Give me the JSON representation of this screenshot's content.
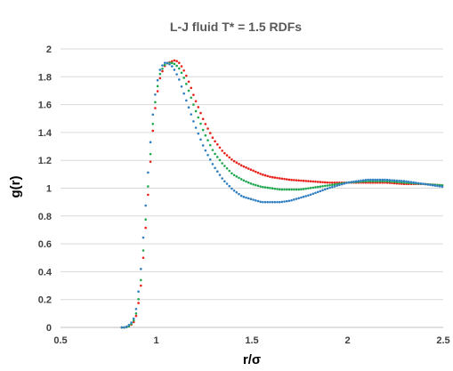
{
  "chart_data": {
    "type": "scatter",
    "title": "L-J fluid T* = 1.5 RDFs",
    "xlabel": "r/σ",
    "ylabel": "g(r)",
    "xlim": [
      0.5,
      2.5
    ],
    "ylim": [
      0,
      2
    ],
    "xticks": [
      0.5,
      1,
      1.5,
      2,
      2.5
    ],
    "yticks": [
      0,
      0.2,
      0.4,
      0.6,
      0.8,
      1,
      1.2,
      1.4,
      1.6,
      1.8,
      2
    ],
    "grid": "horizontal",
    "legend": "none",
    "series": [
      {
        "color": "#e8211b",
        "x": [
          0.82,
          0.84,
          0.86,
          0.88,
          0.9,
          0.92,
          0.94,
          0.96,
          0.98,
          1.0,
          1.02,
          1.04,
          1.06,
          1.08,
          1.1,
          1.12,
          1.14,
          1.16,
          1.18,
          1.2,
          1.25,
          1.3,
          1.35,
          1.4,
          1.45,
          1.5,
          1.55,
          1.6,
          1.7,
          1.8,
          1.9,
          2.0,
          2.1,
          2.2,
          2.3,
          2.4,
          2.5
        ],
        "y": [
          0.0,
          0.0,
          0.01,
          0.03,
          0.1,
          0.3,
          0.62,
          1.0,
          1.38,
          1.64,
          1.79,
          1.87,
          1.9,
          1.91,
          1.92,
          1.9,
          1.86,
          1.8,
          1.73,
          1.65,
          1.48,
          1.35,
          1.26,
          1.2,
          1.16,
          1.13,
          1.1,
          1.08,
          1.06,
          1.05,
          1.04,
          1.04,
          1.04,
          1.04,
          1.03,
          1.03,
          1.02
        ]
      },
      {
        "color": "#1fa84f",
        "x": [
          0.82,
          0.84,
          0.86,
          0.88,
          0.9,
          0.92,
          0.94,
          0.96,
          0.98,
          1.0,
          1.02,
          1.04,
          1.06,
          1.08,
          1.1,
          1.12,
          1.14,
          1.16,
          1.18,
          1.2,
          1.25,
          1.3,
          1.35,
          1.4,
          1.45,
          1.5,
          1.55,
          1.6,
          1.65,
          1.7,
          1.75,
          1.8,
          1.9,
          2.0,
          2.1,
          2.2,
          2.3,
          2.4,
          2.5
        ],
        "y": [
          0.0,
          0.0,
          0.01,
          0.04,
          0.12,
          0.34,
          0.68,
          1.06,
          1.43,
          1.68,
          1.82,
          1.88,
          1.9,
          1.9,
          1.89,
          1.86,
          1.81,
          1.74,
          1.66,
          1.58,
          1.4,
          1.26,
          1.17,
          1.1,
          1.06,
          1.03,
          1.01,
          1.0,
          0.99,
          0.99,
          0.99,
          1.0,
          1.02,
          1.04,
          1.05,
          1.05,
          1.04,
          1.03,
          1.02
        ]
      },
      {
        "color": "#2f7fc1",
        "x": [
          0.82,
          0.84,
          0.86,
          0.88,
          0.9,
          0.92,
          0.94,
          0.96,
          0.98,
          1.0,
          1.02,
          1.04,
          1.06,
          1.08,
          1.1,
          1.12,
          1.14,
          1.16,
          1.18,
          1.2,
          1.25,
          1.3,
          1.35,
          1.4,
          1.45,
          1.5,
          1.55,
          1.6,
          1.65,
          1.7,
          1.75,
          1.8,
          1.9,
          2.0,
          2.1,
          2.15,
          2.2,
          2.3,
          2.4,
          2.5
        ],
        "y": [
          0.0,
          0.0,
          0.02,
          0.05,
          0.16,
          0.42,
          0.78,
          1.16,
          1.5,
          1.73,
          1.85,
          1.9,
          1.9,
          1.88,
          1.84,
          1.78,
          1.7,
          1.62,
          1.54,
          1.46,
          1.29,
          1.16,
          1.06,
          0.99,
          0.94,
          0.92,
          0.9,
          0.9,
          0.9,
          0.91,
          0.93,
          0.95,
          1.0,
          1.04,
          1.06,
          1.06,
          1.06,
          1.05,
          1.03,
          1.01
        ]
      }
    ]
  }
}
